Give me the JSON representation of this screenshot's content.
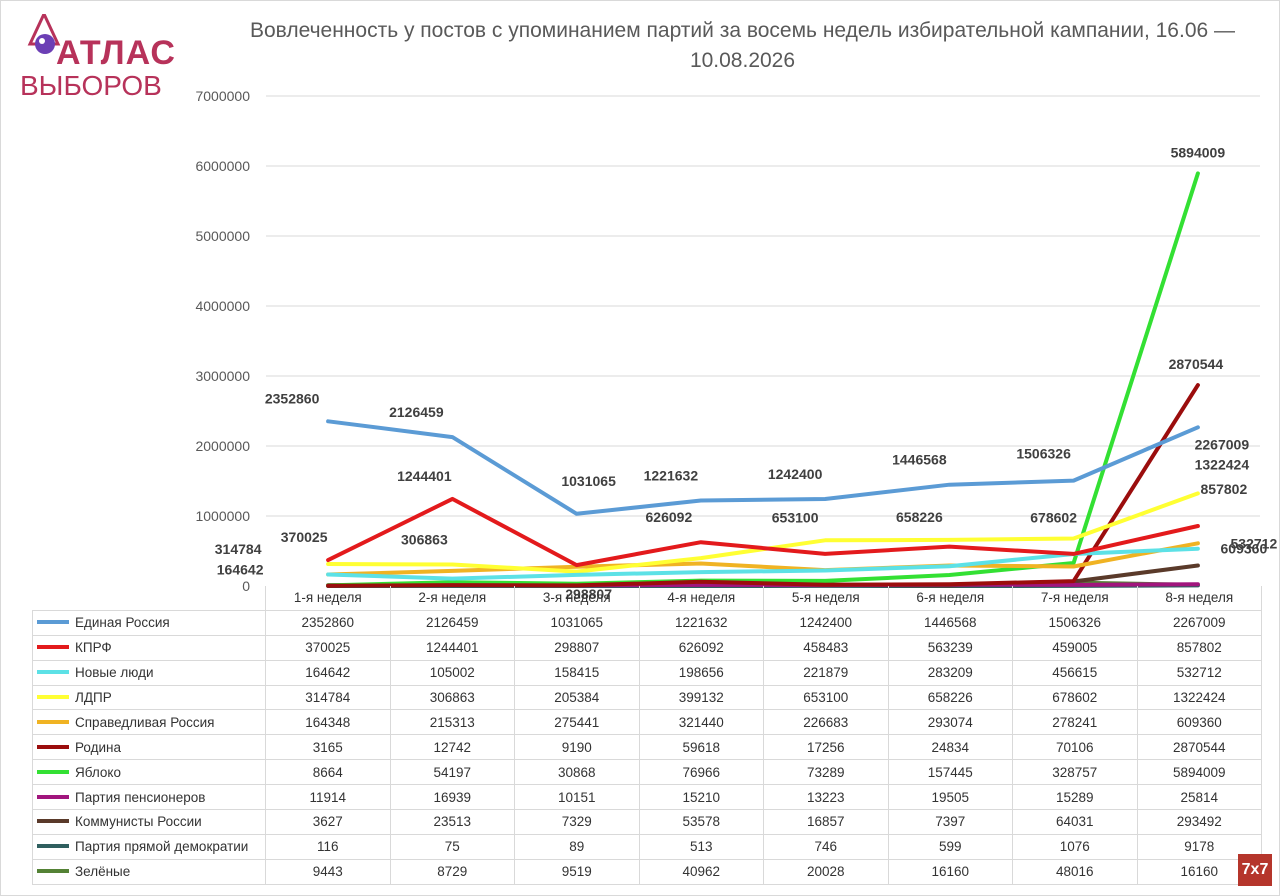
{
  "logo": {
    "line1": "АТЛАС",
    "line2": "ВЫБОРОВ",
    "color": "#b7325a"
  },
  "badge": {
    "text": "7x7",
    "color": "#b5352b"
  },
  "chart_data": {
    "type": "line",
    "title": "Вовлеченность у постов с упоминанием партий за восемь недель избирательной кампании, 16.06 — 10.08.2026",
    "xlabel": "",
    "ylabel": "",
    "ylim": [
      0,
      7000000
    ],
    "yticks": [
      "0",
      "1000000",
      "2000000",
      "3000000",
      "4000000",
      "5000000",
      "6000000",
      "7000000"
    ],
    "grid": true,
    "legend": "table-below",
    "categories": [
      "1-я неделя",
      "2-я неделя",
      "3-я неделя",
      "4-я неделя",
      "5-я неделя",
      "6-я неделя",
      "7-я неделя",
      "8-я неделя"
    ],
    "series": [
      {
        "name": "Единая Россия",
        "color": "#5b9bd5",
        "values": [
          2352860,
          2126459,
          1031065,
          1221632,
          1242400,
          1446568,
          1506326,
          2267009
        ]
      },
      {
        "name": "КПРФ",
        "color": "#e31a1c",
        "values": [
          370025,
          1244401,
          298807,
          626092,
          458483,
          563239,
          459005,
          857802
        ]
      },
      {
        "name": "Новые люди",
        "color": "#5ce1e6",
        "values": [
          164642,
          105002,
          158415,
          198656,
          221879,
          283209,
          456615,
          532712
        ]
      },
      {
        "name": "ЛДПР",
        "color": "#ffff33",
        "values": [
          314784,
          306863,
          205384,
          399132,
          653100,
          658226,
          678602,
          1322424
        ]
      },
      {
        "name": "Справедливая Россия",
        "color": "#f0b323",
        "values": [
          164348,
          215313,
          275441,
          321440,
          226683,
          293074,
          278241,
          609360
        ]
      },
      {
        "name": "Родина",
        "color": "#9b0d0d",
        "values": [
          3165,
          12742,
          9190,
          59618,
          17256,
          24834,
          70106,
          2870544
        ]
      },
      {
        "name": "Яблоко",
        "color": "#33e033",
        "values": [
          8664,
          54197,
          30868,
          76966,
          73289,
          157445,
          328757,
          5894009
        ]
      },
      {
        "name": "Партия пенсионеров",
        "color": "#a1157d",
        "values": [
          11914,
          16939,
          10151,
          15210,
          13223,
          19505,
          15289,
          25814
        ]
      },
      {
        "name": "Коммунисты России",
        "color": "#5a3a2a",
        "values": [
          3627,
          23513,
          7329,
          53578,
          16857,
          7397,
          64031,
          293492
        ]
      },
      {
        "name": "Партия прямой демократии",
        "color": "#2f5f5f",
        "values": [
          116,
          75,
          89,
          513,
          746,
          599,
          1076,
          9178
        ]
      },
      {
        "name": "Зелёные",
        "color": "#548235",
        "values": [
          9443,
          8729,
          9519,
          40962,
          20028,
          16160,
          48016,
          16160
        ]
      }
    ],
    "annotations": [
      {
        "text": "2352860",
        "category": 0,
        "value": 2352860,
        "bold": true
      },
      {
        "text": "2126459",
        "category": 1,
        "value": 2126459,
        "bold": true
      },
      {
        "text": "1031065",
        "category": 2,
        "value": 1031065,
        "bold": true
      },
      {
        "text": "1221632",
        "category": 3,
        "value": 1221632,
        "bold": true
      },
      {
        "text": "1242400",
        "category": 4,
        "value": 1242400,
        "bold": true
      },
      {
        "text": "1446568",
        "category": 5,
        "value": 1446568,
        "bold": true
      },
      {
        "text": "1506326",
        "category": 6,
        "value": 1506326,
        "bold": true
      },
      {
        "text": "2267009",
        "category": 7,
        "value": 2267009,
        "bold": true
      },
      {
        "text": "370025",
        "category": 0,
        "value": 370025,
        "bold": true
      },
      {
        "text": "1244401",
        "category": 1,
        "value": 1244401,
        "bold": true
      },
      {
        "text": "298807",
        "category": 2,
        "value": 298807,
        "bold": true
      },
      {
        "text": "626092",
        "category": 3,
        "value": 626092,
        "bold": true
      },
      {
        "text": "857802",
        "category": 7,
        "value": 857802,
        "bold": true
      },
      {
        "text": "314784",
        "category": 0,
        "value": 314784,
        "bold": true
      },
      {
        "text": "306863",
        "category": 1,
        "value": 306863,
        "bold": true
      },
      {
        "text": "653100",
        "category": 4,
        "value": 653100,
        "bold": true
      },
      {
        "text": "658226",
        "category": 5,
        "value": 658226,
        "bold": true
      },
      {
        "text": "678602",
        "category": 6,
        "value": 678602,
        "bold": true
      },
      {
        "text": "1322424",
        "category": 7,
        "value": 1322424,
        "bold": true
      },
      {
        "text": "164642",
        "category": 0,
        "value": 164642,
        "bold": true
      },
      {
        "text": "532712",
        "category": 7,
        "value": 532712,
        "bold": true
      },
      {
        "text": "609360",
        "category": 7,
        "value": 609360,
        "bold": true
      },
      {
        "text": "2870544",
        "category": 7,
        "value": 2870544,
        "bold": true
      },
      {
        "text": "5894009",
        "category": 7,
        "value": 5894009,
        "bold": true
      }
    ]
  }
}
